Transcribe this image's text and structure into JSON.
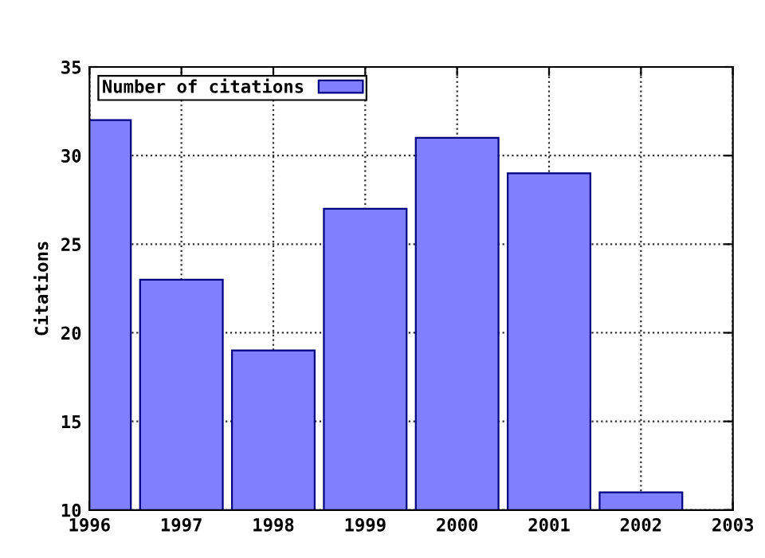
{
  "chart_data": {
    "type": "bar",
    "ylabel": "Citations",
    "x": [
      1996,
      1997,
      1998,
      1999,
      2000,
      2001,
      2002
    ],
    "series": [
      {
        "name": "Number of citations",
        "color": "#8080ff",
        "values": [
          32,
          23,
          19,
          27,
          31,
          29,
          11
        ]
      }
    ],
    "xlim": [
      1996,
      2003
    ],
    "xticks": [
      1996,
      1997,
      1998,
      1999,
      2000,
      2001,
      2002,
      2003
    ],
    "ylim": [
      10,
      35
    ],
    "yticks": [
      10,
      15,
      20,
      25,
      30,
      35
    ],
    "grid": true,
    "line_style": "dotted",
    "legend": "top left"
  }
}
